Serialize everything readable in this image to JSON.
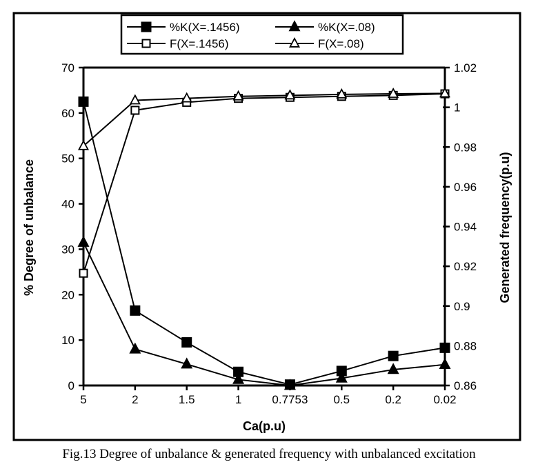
{
  "chart_data": {
    "type": "line",
    "title": "",
    "caption": "Fig.13 Degree of unbalance & generated frequency with unbalanced excitation",
    "xlabel": "Ca(p.u)",
    "ylabel_left": "% Degree of unbalance",
    "ylabel_right": "Generated frequency(p.u)",
    "categories": [
      "5",
      "2",
      "1.5",
      "1",
      "0.7753",
      "0.5",
      "0.2",
      "0.02"
    ],
    "ylim_left": [
      0,
      70
    ],
    "yticks_left": [
      "0",
      "10",
      "20",
      "30",
      "40",
      "50",
      "60",
      "70"
    ],
    "ylim_right": [
      0.86,
      1.02
    ],
    "yticks_right": [
      "0.86",
      "0.88",
      "0.9",
      "0.92",
      "0.94",
      "0.96",
      "0.98",
      "1",
      "1.02"
    ],
    "grid": false,
    "legend_position": "top-center",
    "series": [
      {
        "name": "%K(X=.1456)",
        "axis": "left",
        "marker": "square-filled",
        "values": [
          62.5,
          16.5,
          9.5,
          3.0,
          0.2,
          3.2,
          6.5,
          8.3
        ]
      },
      {
        "name": "%K(X=.08)",
        "axis": "left",
        "marker": "triangle-filled",
        "values": [
          31.5,
          8.0,
          4.7,
          1.3,
          0.0,
          1.6,
          3.5,
          4.6
        ]
      },
      {
        "name": "F(X=.1456)",
        "axis": "right",
        "marker": "square-open",
        "values": [
          0.9165,
          0.9985,
          1.0025,
          1.0045,
          1.005,
          1.0055,
          1.006,
          1.0068
        ]
      },
      {
        "name": "F(X=.08)",
        "axis": "right",
        "marker": "triangle-open",
        "values": [
          0.9805,
          1.0035,
          1.0045,
          1.0055,
          1.006,
          1.0065,
          1.0068,
          1.007
        ]
      }
    ]
  }
}
